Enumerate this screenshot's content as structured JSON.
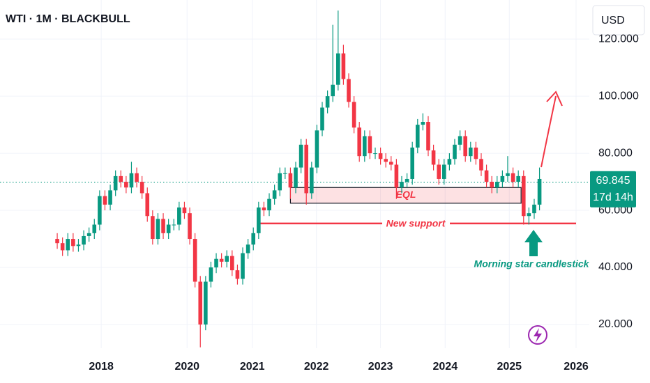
{
  "chart_data": {
    "type": "candlestick",
    "title": "WTI · 1M · BLACKBULL",
    "currency": "USD",
    "x": [
      0,
      1,
      2,
      3,
      4,
      5,
      6,
      7,
      8,
      9,
      10,
      11,
      12,
      13,
      14,
      15,
      16,
      17,
      18,
      19,
      20,
      21,
      22,
      23,
      24,
      25,
      26,
      27,
      28,
      29,
      30,
      31,
      32,
      33,
      34,
      35,
      36,
      37,
      38,
      39,
      40,
      41,
      42,
      43,
      44,
      45,
      46,
      47,
      48,
      49,
      50,
      51,
      52,
      53,
      54,
      55,
      56,
      57,
      58,
      59,
      60,
      61,
      62,
      63,
      64,
      65,
      66,
      67,
      68,
      69,
      70,
      71,
      72,
      73,
      74,
      75,
      76,
      77,
      78,
      79,
      80,
      81,
      82,
      83,
      84,
      85,
      86,
      87,
      88,
      89,
      90,
      91
    ],
    "open": [
      50,
      48.5,
      46,
      50,
      47.5,
      48,
      51,
      52,
      55,
      65,
      62,
      67,
      72,
      70,
      68,
      73,
      70,
      66,
      58,
      50,
      57,
      52,
      55,
      55,
      61,
      59,
      50,
      35,
      20,
      35,
      40,
      43,
      42,
      44,
      39,
      36,
      45,
      48,
      52,
      61,
      60,
      64,
      67,
      73,
      73,
      68,
      75,
      83,
      66,
      75,
      88,
      96,
      100,
      104,
      115,
      106,
      98,
      89,
      79,
      86,
      80,
      80,
      78,
      77,
      76,
      68,
      70,
      71,
      82,
      90,
      91,
      81,
      76,
      71,
      76,
      78,
      83,
      86,
      79,
      82,
      78,
      74,
      70,
      68,
      70,
      72,
      73,
      70,
      72,
      58,
      59,
      62
    ],
    "high": [
      52,
      50.5,
      52,
      52,
      50,
      53,
      54,
      57,
      67,
      67,
      69,
      74,
      74,
      72,
      77,
      75,
      72,
      68,
      60,
      59,
      59,
      57,
      57,
      63,
      63,
      61,
      52,
      37,
      37,
      42,
      45,
      45,
      46,
      46,
      41,
      47,
      50,
      54,
      63,
      63,
      66,
      69,
      75,
      75,
      75,
      77,
      85,
      85,
      77,
      90,
      98,
      102,
      125,
      130,
      118,
      108,
      100,
      91,
      88,
      88,
      82,
      82,
      80,
      79,
      78,
      72,
      73,
      84,
      92,
      94,
      93,
      83,
      78,
      78,
      80,
      85,
      88,
      88,
      84,
      84,
      80,
      76,
      72,
      72,
      74,
      79,
      75,
      74,
      74,
      61,
      64,
      75
    ],
    "low": [
      46.5,
      44,
      44,
      45.5,
      45.5,
      46,
      49,
      50,
      53,
      60,
      60,
      65,
      68,
      66,
      66,
      68,
      64,
      56,
      48,
      48,
      50,
      50,
      53,
      53,
      57,
      48,
      33,
      12,
      18,
      33,
      38,
      40,
      40,
      37,
      34,
      34,
      43,
      46,
      50,
      58,
      58,
      62,
      65,
      71,
      64,
      66,
      73,
      62,
      64,
      73,
      86,
      94,
      98,
      102,
      104,
      96,
      87,
      77,
      77,
      78,
      78,
      76,
      75,
      74,
      64,
      66,
      68,
      69,
      80,
      88,
      79,
      74,
      69,
      69,
      74,
      76,
      81,
      77,
      77,
      76,
      72,
      68,
      66,
      66,
      68,
      70,
      68,
      68,
      55,
      55,
      57,
      60
    ],
    "close": [
      48.5,
      46,
      50,
      47.5,
      48,
      51,
      52,
      55,
      65,
      62,
      67,
      72,
      70,
      68,
      73,
      70,
      66,
      58,
      50,
      57,
      52,
      55,
      55,
      61,
      59,
      50,
      35,
      20,
      35,
      40,
      43,
      42,
      44,
      39,
      36,
      45,
      48,
      52,
      61,
      60,
      64,
      67,
      73,
      73,
      68,
      75,
      83,
      66,
      75,
      88,
      96,
      100,
      104,
      115,
      106,
      98,
      89,
      79,
      86,
      80,
      80,
      78,
      77,
      76,
      68,
      70,
      71,
      82,
      90,
      91,
      81,
      76,
      71,
      76,
      78,
      83,
      86,
      79,
      82,
      78,
      74,
      70,
      68,
      70,
      72,
      73,
      70,
      72,
      58,
      59,
      62,
      71
    ],
    "up_color": "#089981",
    "down_color": "#f23645",
    "xlim": [
      -10.8,
      100.4
    ],
    "xticks": [
      {
        "value": 8.3,
        "label": "2018"
      },
      {
        "value": 24.5,
        "label": "2020"
      },
      {
        "value": 36.8,
        "label": "2021"
      },
      {
        "value": 48.9,
        "label": "2022"
      },
      {
        "value": 61,
        "label": "2023"
      },
      {
        "value": 73.2,
        "label": "2024"
      },
      {
        "value": 85.3,
        "label": "2025"
      },
      {
        "value": 97.9,
        "label": "2026"
      }
    ],
    "ylim": [
      11.7,
      133.7
    ],
    "yticks": [
      {
        "value": 20,
        "label": "20.000"
      },
      {
        "value": 40,
        "label": "40.000"
      },
      {
        "value": 60,
        "label": "60.000"
      },
      {
        "value": 80,
        "label": "80.000"
      },
      {
        "value": 100,
        "label": "100.000"
      },
      {
        "value": 120,
        "label": "120.000"
      }
    ],
    "grid": true,
    "last_price": 69.845,
    "countdown": "17d 14h",
    "eql_zone": {
      "label": "EQL",
      "low": 62.5,
      "high": 68
    },
    "support": {
      "label": "New support",
      "value": 55.4
    },
    "annotation": "Morning star candlestick"
  }
}
